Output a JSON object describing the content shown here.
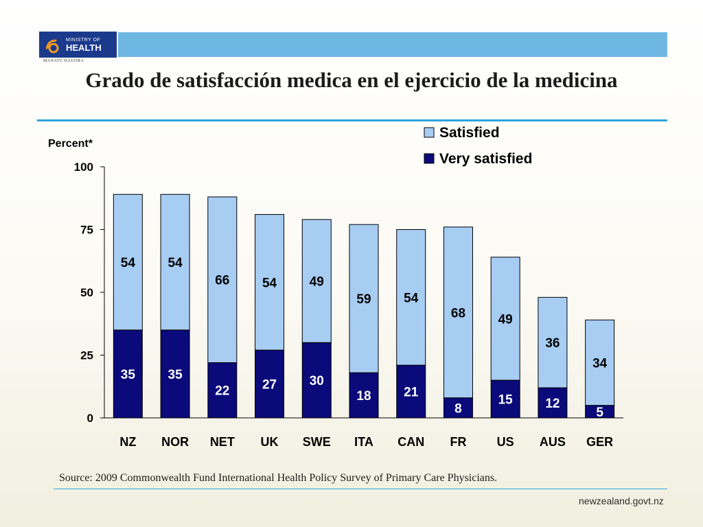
{
  "header": {
    "logo_line1": "MINISTRY OF",
    "logo_line2": "HEALTH",
    "logo_sub": "MANATŪ HAUORA",
    "title": "Grado de satisfacción medica en el ejercicio de la medicina"
  },
  "chart_data": {
    "type": "bar",
    "stacked": true,
    "categories": [
      "NZ",
      "NOR",
      "NET",
      "UK",
      "SWE",
      "ITA",
      "CAN",
      "FR",
      "US",
      "AUS",
      "GER"
    ],
    "series": [
      {
        "name": "Very satisfied",
        "values": [
          35,
          35,
          22,
          27,
          30,
          18,
          21,
          8,
          15,
          12,
          5
        ],
        "color": "#0a0a7a"
      },
      {
        "name": "Satisfied",
        "values": [
          54,
          54,
          66,
          54,
          49,
          59,
          54,
          68,
          49,
          36,
          34
        ],
        "color": "#a8cdf3"
      }
    ],
    "ylabel": "Percent*",
    "ylim": [
      0,
      100
    ],
    "yticks": [
      0,
      25,
      50,
      75,
      100
    ],
    "legend_position": "top-right",
    "label_colors": {
      "Very satisfied": "#ffffff",
      "Satisfied": "#000000"
    }
  },
  "footer": {
    "source": "Source: 2009 Commonwealth Fund International Health Policy Survey of Primary Care Physicians.",
    "website": "newzealand.govt.nz"
  }
}
